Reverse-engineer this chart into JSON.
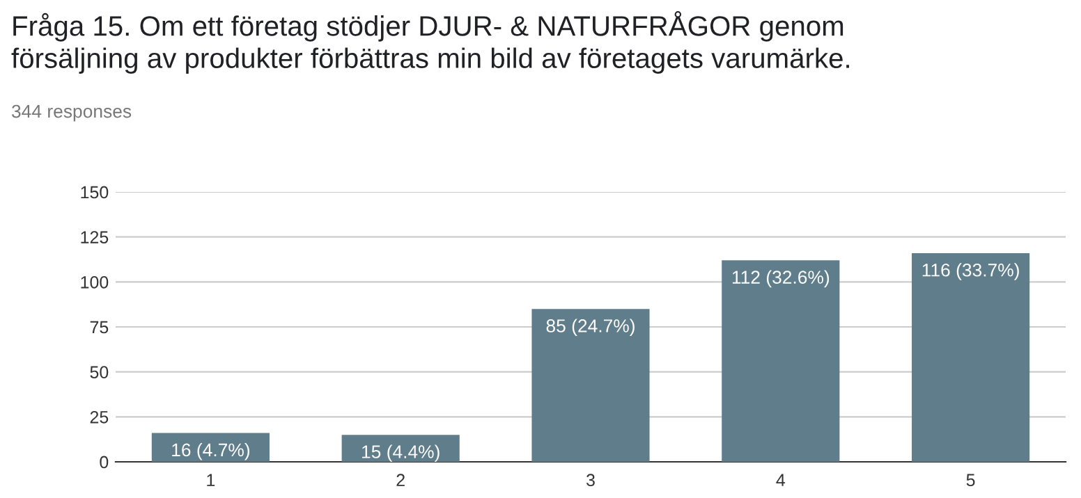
{
  "chart_data": {
    "type": "bar",
    "title": "Fråga 15. Om ett företag stödjer DJUR- & NATURFRÅGOR genom\nförsäljning av produkter förbättras min bild av företagets varumärke.",
    "subtitle": "344 responses",
    "categories": [
      "1",
      "2",
      "3",
      "4",
      "5"
    ],
    "values": [
      16,
      15,
      85,
      112,
      116
    ],
    "value_labels": [
      "16 (4.7%)",
      "15 (4.4%)",
      "85 (24.7%)",
      "112 (32.6%)",
      "116 (33.7%)"
    ],
    "color": "#607d8b",
    "ylim": [
      0,
      150
    ],
    "yticks": [
      0,
      25,
      50,
      75,
      100,
      125,
      150
    ],
    "grid": "y",
    "legend": false
  }
}
